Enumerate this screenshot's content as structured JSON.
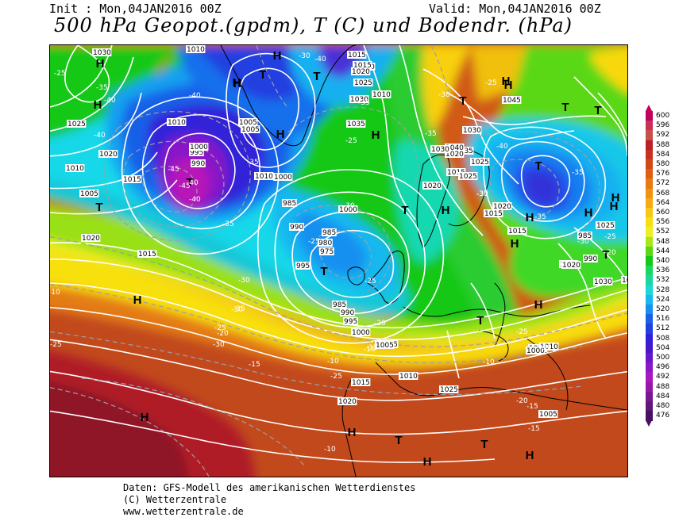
{
  "header": {
    "init": "Init : Mon,04JAN2016 00Z",
    "valid": "Valid: Mon,04JAN2016 00Z",
    "title": "500 hPa Geopot.(gpdm), T (C) und Bodendr. (hPa)"
  },
  "legend": {
    "labels": [
      "600",
      "596",
      "592",
      "588",
      "584",
      "580",
      "576",
      "572",
      "568",
      "564",
      "560",
      "556",
      "552",
      "548",
      "544",
      "540",
      "536",
      "532",
      "528",
      "524",
      "520",
      "516",
      "512",
      "508",
      "504",
      "500",
      "496",
      "492",
      "488",
      "484",
      "480",
      "476"
    ],
    "colors": [
      "#c2005e",
      "#c8305a",
      "#c8504a",
      "#b8202a",
      "#c83020",
      "#d04a18",
      "#dc6010",
      "#e87a10",
      "#f09410",
      "#f4ac12",
      "#f8c818",
      "#f8e010",
      "#ecf020",
      "#a8e818",
      "#5ad818",
      "#18c818",
      "#18d860",
      "#18d8a0",
      "#18d8d8",
      "#18b8f0",
      "#1890f0",
      "#1860e8",
      "#2040e0",
      "#3020d8",
      "#4818c8",
      "#6818c8",
      "#8818c8",
      "#a818c0",
      "#9818a8",
      "#781890",
      "#601878",
      "#481060"
    ]
  },
  "map": {
    "pressure_systems": [
      {
        "label": "H"
      },
      {
        "label": "H"
      },
      {
        "label": "H"
      },
      {
        "label": "T"
      },
      {
        "label": "H"
      },
      {
        "label": "T"
      },
      {
        "label": "H"
      },
      {
        "label": "H"
      },
      {
        "label": "T"
      },
      {
        "label": "T"
      },
      {
        "label": "H"
      },
      {
        "label": "T"
      },
      {
        "label": "H"
      },
      {
        "label": "T"
      },
      {
        "label": "H"
      },
      {
        "label": "H"
      },
      {
        "label": "H"
      },
      {
        "label": "T"
      },
      {
        "label": "H"
      },
      {
        "label": "T"
      },
      {
        "label": "T"
      },
      {
        "label": "H"
      },
      {
        "label": "H"
      },
      {
        "label": "T"
      },
      {
        "label": "T"
      },
      {
        "label": "H"
      },
      {
        "label": "T"
      },
      {
        "label": "H"
      },
      {
        "label": "H"
      },
      {
        "label": "H"
      },
      {
        "label": "T"
      },
      {
        "label": "H"
      },
      {
        "label": "H"
      },
      {
        "label": "T"
      },
      {
        "label": "H"
      }
    ],
    "isobar_labels": [
      "1030",
      "1010",
      "1025",
      "1020",
      "1010",
      "1005",
      "1015",
      "1010",
      "1020",
      "1015",
      "995",
      "990",
      "1000",
      "1005",
      "1000",
      "985",
      "990",
      "995",
      "1000",
      "1010",
      "1005",
      "1015",
      "1020",
      "1025",
      "1030",
      "1035",
      "1010",
      "1015",
      "1020",
      "1025",
      "1030",
      "1035",
      "1040",
      "1045",
      "1020",
      "1015",
      "1025",
      "1020",
      "1030",
      "1015",
      "1020",
      "1010",
      "1015",
      "1025",
      "1030",
      "1015",
      "1005",
      "1010",
      "1015",
      "1020",
      "1025",
      "1020",
      "1005",
      "1010",
      "985",
      "980",
      "975",
      "985",
      "990",
      "995",
      "1000",
      "1005",
      "1000",
      "990",
      "985",
      "1030"
    ],
    "temp_labels": [
      "-25",
      "-35",
      "-40",
      "-40",
      "-45",
      "-40",
      "-45",
      "-40",
      "-35",
      "-40",
      "-35",
      "-30",
      "-35",
      "-30",
      "-25",
      "-30",
      "-20",
      "-15",
      "-10",
      "-25",
      "-30",
      "-25",
      "-30",
      "-35",
      "-30",
      "-25",
      "-35",
      "-30",
      "-25",
      "-25",
      "-20",
      "-15",
      "-10",
      "-15",
      "-10",
      "-15",
      "-20",
      "-25",
      "-30",
      "-35",
      "-40",
      "-35",
      "-35",
      "-40",
      "-30",
      "-25",
      "-20",
      "-15",
      "-10",
      "-25"
    ]
  },
  "credits": {
    "line1": "Daten: GFS-Modell des amerikanischen Wetterdienstes",
    "line2": "(C) Wetterzentrale",
    "line3": "www.wetterzentrale.de"
  }
}
